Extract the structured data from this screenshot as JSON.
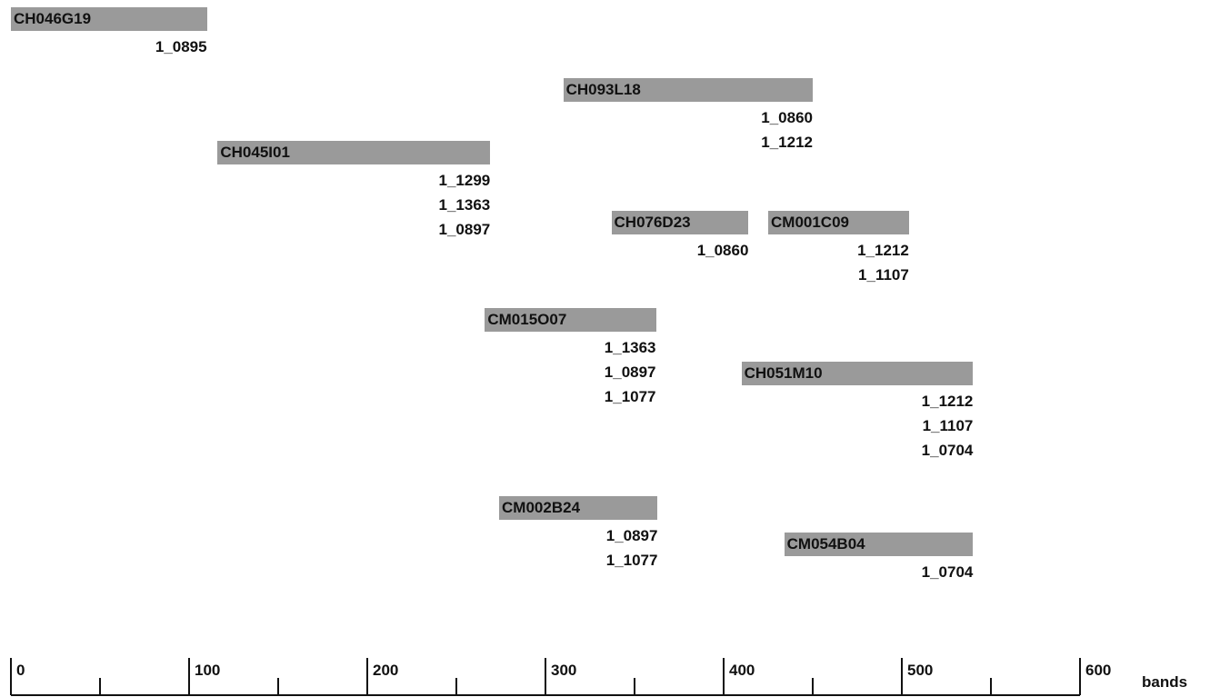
{
  "clones": [
    {
      "name": "CH046G19",
      "start": 0,
      "end": 110,
      "markers": [
        "1_0895"
      ]
    },
    {
      "name": "CH093L18",
      "start": 310,
      "end": 450,
      "markers": [
        "1_0860",
        "1_1212"
      ]
    },
    {
      "name": "CH045I01",
      "start": 116,
      "end": 269,
      "markers": [
        "1_1299",
        "1_1363",
        "1_0897"
      ]
    },
    {
      "name": "CH076D23",
      "start": 337,
      "end": 414,
      "markers": [
        "1_0860"
      ]
    },
    {
      "name": "CM001C09",
      "start": 425,
      "end": 504,
      "markers": [
        "1_1212",
        "1_1107"
      ]
    },
    {
      "name": "CM015O07",
      "start": 266,
      "end": 362,
      "markers": [
        "1_1363",
        "1_0897",
        "1_1077"
      ]
    },
    {
      "name": "CH051M10",
      "start": 410,
      "end": 540,
      "markers": [
        "1_1212",
        "1_1107",
        "1_0704"
      ]
    },
    {
      "name": "CM002B24",
      "start": 274,
      "end": 363,
      "markers": [
        "1_0897",
        "1_1077"
      ]
    },
    {
      "name": "CM054B04",
      "start": 434,
      "end": 540,
      "markers": [
        "1_0704"
      ]
    }
  ],
  "axis": {
    "min": 0,
    "max": 600,
    "major_ticks": [
      0,
      100,
      200,
      300,
      400,
      500,
      600
    ],
    "minor_ticks": [
      50,
      150,
      250,
      350,
      450,
      550
    ],
    "unit_label": "bands"
  },
  "colors": {
    "clone_bar": "#9a9a9a",
    "text": "#111111",
    "axis": "#111111"
  }
}
